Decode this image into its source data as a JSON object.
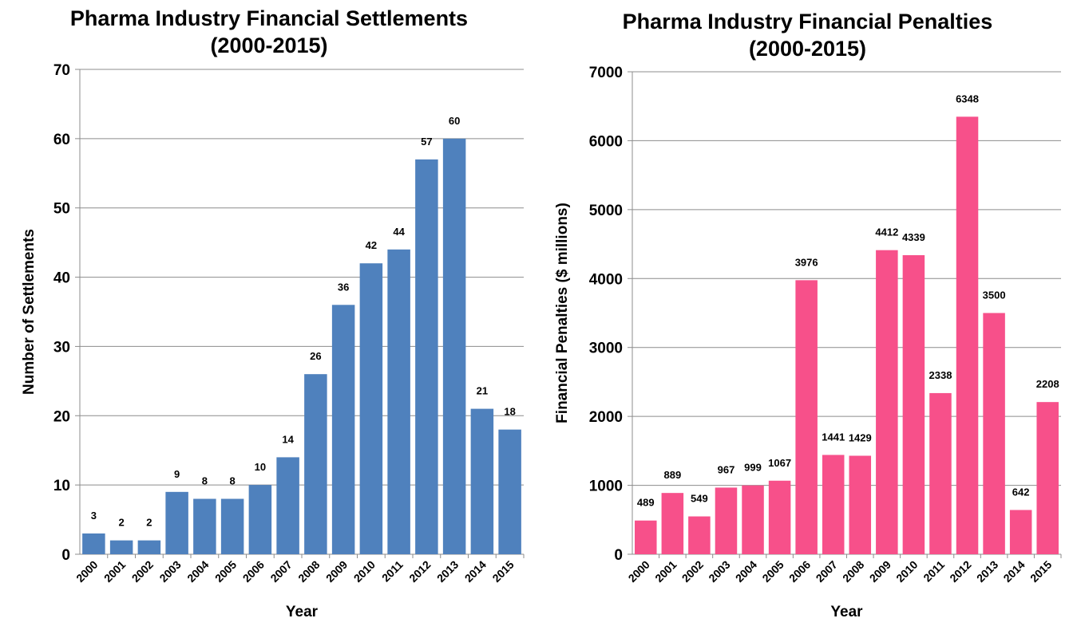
{
  "chart_data": [
    {
      "type": "bar",
      "title_lines": [
        "Pharma Industry Financial Settlements",
        "(2000-2015)"
      ],
      "xlabel": "Year",
      "ylabel": "Number of Settlements",
      "categories": [
        "2000",
        "2001",
        "2002",
        "2003",
        "2004",
        "2005",
        "2006",
        "2007",
        "2008",
        "2009",
        "2010",
        "2011",
        "2012",
        "2013",
        "2014",
        "2015"
      ],
      "values": [
        3,
        2,
        2,
        9,
        8,
        8,
        10,
        14,
        26,
        36,
        42,
        44,
        57,
        60,
        21,
        18
      ],
      "ylim": [
        0,
        70
      ],
      "yticks": [
        0,
        10,
        20,
        30,
        40,
        50,
        60,
        70
      ],
      "grid": true,
      "color": "#4F81BD"
    },
    {
      "type": "bar",
      "title_lines": [
        "Pharma Industry Financial Penalties",
        "(2000-2015)"
      ],
      "xlabel": "Year",
      "ylabel": "Financial Penalties ($ millions)",
      "categories": [
        "2000",
        "2001",
        "2002",
        "2003",
        "2004",
        "2005",
        "2006",
        "2007",
        "2008",
        "2009",
        "2010",
        "2011",
        "2012",
        "2013",
        "2014",
        "2015"
      ],
      "values": [
        489,
        889,
        549,
        967,
        999,
        1067,
        3976,
        1441,
        1429,
        4412,
        4339,
        2338,
        6348,
        3500,
        642,
        2208
      ],
      "ylim": [
        0,
        7000
      ],
      "yticks": [
        0,
        1000,
        2000,
        3000,
        4000,
        5000,
        6000,
        7000
      ],
      "grid": true,
      "color": "#F7508A"
    }
  ]
}
